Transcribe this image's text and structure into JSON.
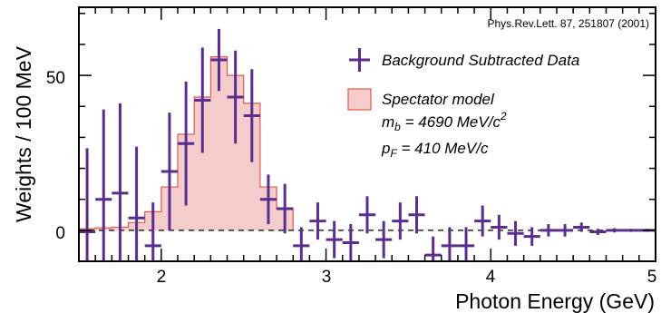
{
  "chart_data": {
    "type": "histogram+errorbar",
    "xlabel": "Photon Energy (GeV)",
    "ylabel": "Weights / 100 MeV",
    "xlim": [
      1.5,
      5.0
    ],
    "ylim": [
      -10,
      72
    ],
    "x_ticks": [
      "2",
      "3",
      "4",
      "5"
    ],
    "y_ticks": [
      "0",
      "50"
    ],
    "reference": "Phys.Rev.Lett. 87, 251807 (2001)",
    "zero_line": "dashed",
    "colors": {
      "data": "#5b2d8e",
      "model_fill": "#f4cccc",
      "model_line": "#e0584a"
    },
    "legend": {
      "position": "upper-right",
      "data_label": "Background Subtracted Data",
      "model_label": "Spectator model",
      "mb_prefix": "m",
      "mb_sub": "b",
      "mb_text": " = 4690 MeV/c",
      "mb_sup": "2",
      "pf_prefix": "p",
      "pf_sub": "F",
      "pf_text": " =  410 MeV/c"
    },
    "model_histogram": {
      "bin_edges": [
        1.5,
        1.6,
        1.7,
        1.8,
        1.9,
        2.0,
        2.1,
        2.2,
        2.3,
        2.4,
        2.5,
        2.6,
        2.7,
        2.8
      ],
      "values": [
        0.5,
        0.8,
        1.0,
        2.5,
        6,
        14,
        31,
        43,
        56,
        50,
        41,
        14,
        7
      ]
    },
    "data_points": [
      {
        "x": 1.55,
        "y": -0.5,
        "yerr": 27
      },
      {
        "x": 1.65,
        "y": 10,
        "yerr": 29
      },
      {
        "x": 1.75,
        "y": 12,
        "yerr": 29
      },
      {
        "x": 1.85,
        "y": 4,
        "yerr": 23
      },
      {
        "x": 1.95,
        "y": -5,
        "yerr": 14
      },
      {
        "x": 2.05,
        "y": 19,
        "yerr": 19
      },
      {
        "x": 2.15,
        "y": 28,
        "yerr": 20
      },
      {
        "x": 2.25,
        "y": 42,
        "yerr": 17
      },
      {
        "x": 2.35,
        "y": 55,
        "yerr": 10
      },
      {
        "x": 2.45,
        "y": 43,
        "yerr": 15
      },
      {
        "x": 2.55,
        "y": 37,
        "yerr": 15
      },
      {
        "x": 2.65,
        "y": 10,
        "yerr": 8
      },
      {
        "x": 2.75,
        "y": 7,
        "yerr": 8
      },
      {
        "x": 2.85,
        "y": -5,
        "yerr": 6
      },
      {
        "x": 2.95,
        "y": 3,
        "yerr": 6
      },
      {
        "x": 3.05,
        "y": -3,
        "yerr": 6
      },
      {
        "x": 3.15,
        "y": -4,
        "yerr": 6
      },
      {
        "x": 3.25,
        "y": 5,
        "yerr": 6
      },
      {
        "x": 3.35,
        "y": -3,
        "yerr": 6
      },
      {
        "x": 3.45,
        "y": 3,
        "yerr": 6
      },
      {
        "x": 3.55,
        "y": 5,
        "yerr": 6
      },
      {
        "x": 3.65,
        "y": -8,
        "yerr": 6
      },
      {
        "x": 3.75,
        "y": -5,
        "yerr": 6
      },
      {
        "x": 3.85,
        "y": -5,
        "yerr": 6
      },
      {
        "x": 3.95,
        "y": 3,
        "yerr": 5
      },
      {
        "x": 4.05,
        "y": 1,
        "yerr": 4
      },
      {
        "x": 4.15,
        "y": -1,
        "yerr": 4
      },
      {
        "x": 4.25,
        "y": -2,
        "yerr": 3
      },
      {
        "x": 4.35,
        "y": 0,
        "yerr": 2
      },
      {
        "x": 4.45,
        "y": 0,
        "yerr": 2
      },
      {
        "x": 4.55,
        "y": 1,
        "yerr": 1.5
      },
      {
        "x": 4.65,
        "y": -0.5,
        "yerr": 1
      },
      {
        "x": 4.75,
        "y": 0,
        "yerr": 0.7
      },
      {
        "x": 4.85,
        "y": 0,
        "yerr": 0.5
      },
      {
        "x": 4.95,
        "y": 0,
        "yerr": 0.5
      }
    ]
  }
}
